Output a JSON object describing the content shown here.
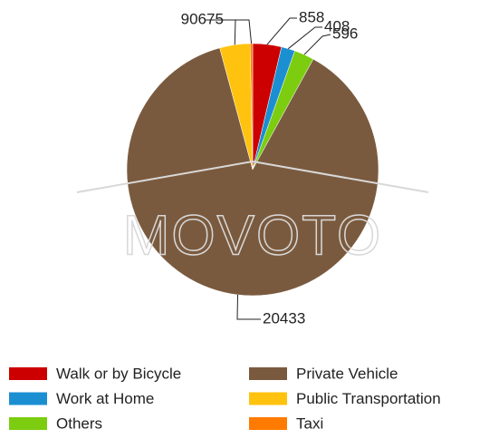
{
  "chart_data": {
    "type": "pie",
    "watermark": "MOVOTO",
    "categories": [
      "Walk or by Bicycle",
      "Work at Home",
      "Others",
      "Private Vehicle",
      "Public Transportation",
      "Taxi"
    ],
    "values": [
      858,
      408,
      596,
      20433,
      906,
      75
    ],
    "colors": [
      "#cc0000",
      "#1b8fd2",
      "#7ccc10",
      "#7a5a3e",
      "#ffc20e",
      "#ff7b00"
    ],
    "legend": "bottom"
  }
}
